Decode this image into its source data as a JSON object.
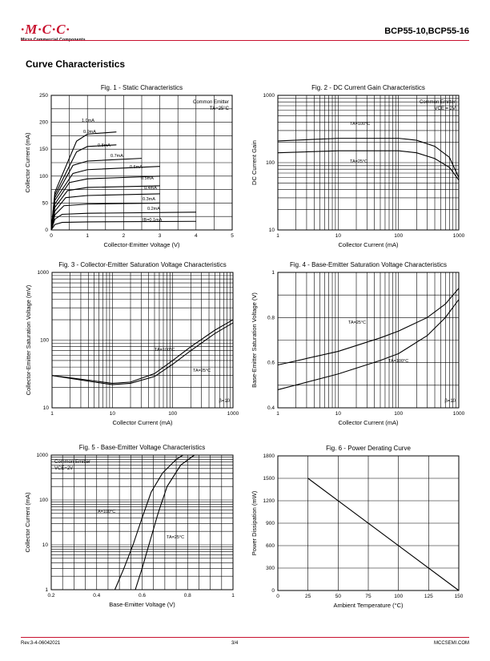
{
  "header": {
    "logo_text": "·M·C·C·",
    "logo_subtitle": "Micro Commercial Components",
    "part_numbers": "BCP55-10,BCP55-16",
    "accent_color": "#c8102e"
  },
  "section_title": "Curve Characteristics",
  "footer": {
    "revision": "Rev.3-4-06042021",
    "page": "3/4",
    "website": "MCCSEMI.COM"
  },
  "chart_data": [
    {
      "id": "fig1",
      "type": "line",
      "title": "Fig. 1 - Static Characteristics",
      "xlabel": "Collector-Emitter Voltage (V)",
      "ylabel": "Collector Current (mA)",
      "xscale": "linear",
      "yscale": "linear",
      "xlim": [
        0,
        5
      ],
      "ylim": [
        0,
        250
      ],
      "xticks": [
        0,
        1,
        2,
        3,
        4,
        5
      ],
      "yticks": [
        0,
        50,
        100,
        150,
        200,
        250
      ],
      "grid": true,
      "annotations": [
        "Common Emitter",
        "TA=25°C"
      ],
      "series": [
        {
          "name": "IB=0.1mA",
          "values": [
            [
              0,
              0
            ],
            [
              0.1,
              10
            ],
            [
              0.3,
              14
            ],
            [
              1,
              15
            ],
            [
              4,
              16
            ]
          ]
        },
        {
          "name": "0.2mA",
          "values": [
            [
              0,
              0
            ],
            [
              0.1,
              20
            ],
            [
              0.3,
              29
            ],
            [
              1,
              31
            ],
            [
              4,
              33
            ]
          ]
        },
        {
          "name": "0.3mA",
          "values": [
            [
              0,
              0
            ],
            [
              0.1,
              28
            ],
            [
              0.35,
              45
            ],
            [
              1,
              48
            ],
            [
              3,
              50
            ]
          ]
        },
        {
          "name": "0.4mA",
          "values": [
            [
              0,
              0
            ],
            [
              0.1,
              35
            ],
            [
              0.4,
              60
            ],
            [
              1,
              64
            ],
            [
              3,
              67
            ]
          ]
        },
        {
          "name": "0.5mA",
          "values": [
            [
              0,
              0
            ],
            [
              0.1,
              42
            ],
            [
              0.45,
              73
            ],
            [
              1,
              79
            ],
            [
              3,
              82
            ]
          ]
        },
        {
          "name": "0.6mA",
          "values": [
            [
              0,
              0
            ],
            [
              0.1,
              48
            ],
            [
              0.5,
              88
            ],
            [
              1,
              95
            ],
            [
              3,
              100
            ]
          ]
        },
        {
          "name": "0.7mA",
          "values": [
            [
              0,
              0
            ],
            [
              0.1,
              55
            ],
            [
              0.6,
              105
            ],
            [
              1,
              112
            ],
            [
              3,
              118
            ]
          ]
        },
        {
          "name": "0.8mA",
          "values": [
            [
              0,
              0
            ],
            [
              0.1,
              60
            ],
            [
              0.6,
              120
            ],
            [
              1,
              128
            ],
            [
              2.5,
              133
            ]
          ]
        },
        {
          "name": "0.9mA",
          "values": [
            [
              0,
              0
            ],
            [
              0.1,
              65
            ],
            [
              0.7,
              145
            ],
            [
              1,
              155
            ],
            [
              1.8,
              158
            ]
          ]
        },
        {
          "name": "1.0mA",
          "values": [
            [
              0,
              0
            ],
            [
              0.1,
              70
            ],
            [
              0.7,
              165
            ],
            [
              1,
              178
            ],
            [
              1.8,
              182
            ]
          ]
        }
      ]
    },
    {
      "id": "fig2",
      "type": "line",
      "title": "Fig. 2 - DC Current Gain Characteristics",
      "xlabel": "Collector Current (mA)",
      "ylabel": "DC Current Gain",
      "xscale": "log",
      "yscale": "log",
      "xlim": [
        1,
        1000
      ],
      "ylim": [
        10,
        1000
      ],
      "xticks": [
        1,
        10,
        100,
        1000
      ],
      "yticks": [
        10,
        100,
        1000
      ],
      "grid": true,
      "annotations": [
        "Common Emitter",
        "VCE = 2V"
      ],
      "series": [
        {
          "name": "TA=100°C",
          "values": [
            [
              1,
              210
            ],
            [
              10,
              230
            ],
            [
              100,
              230
            ],
            [
              200,
              215
            ],
            [
              400,
              175
            ],
            [
              700,
              120
            ],
            [
              1000,
              60
            ]
          ]
        },
        {
          "name": "TA=25°C",
          "values": [
            [
              1,
              140
            ],
            [
              10,
              150
            ],
            [
              100,
              150
            ],
            [
              200,
              140
            ],
            [
              400,
              115
            ],
            [
              700,
              85
            ],
            [
              1000,
              55
            ]
          ]
        }
      ]
    },
    {
      "id": "fig3",
      "type": "line",
      "title": "Fig. 3 - Collector-Emitter Saturation Voltage Characteristics",
      "xlabel": "Collector Current (mA)",
      "ylabel": "Collector-Emitter Saturation Voltage (mV)",
      "xscale": "log",
      "yscale": "log",
      "xlim": [
        1,
        1000
      ],
      "ylim": [
        10,
        1000
      ],
      "xticks": [
        1,
        10,
        100,
        1000
      ],
      "yticks": [
        10,
        100,
        1000
      ],
      "grid": true,
      "annotations": [
        "β=10"
      ],
      "series": [
        {
          "name": "TA=100°C",
          "values": [
            [
              1,
              30
            ],
            [
              5,
              25
            ],
            [
              10,
              23
            ],
            [
              20,
              24
            ],
            [
              50,
              32
            ],
            [
              100,
              50
            ],
            [
              200,
              80
            ],
            [
              500,
              140
            ],
            [
              1000,
              200
            ]
          ]
        },
        {
          "name": "TA=25°C",
          "values": [
            [
              1,
              30
            ],
            [
              5,
              24
            ],
            [
              10,
              22
            ],
            [
              20,
              23
            ],
            [
              50,
              29
            ],
            [
              100,
              44
            ],
            [
              200,
              70
            ],
            [
              500,
              125
            ],
            [
              1000,
              180
            ]
          ]
        }
      ]
    },
    {
      "id": "fig4",
      "type": "line",
      "title": "Fig. 4 - Base-Emitter Saturation Voltage Characteristics",
      "xlabel": "Collector Current (mA)",
      "ylabel": "Base-Emitter Saturation Voltage (V)",
      "xscale": "log",
      "yscale": "linear",
      "xlim": [
        1,
        1000
      ],
      "ylim": [
        0.4,
        1.0
      ],
      "xticks": [
        1,
        10,
        100,
        1000
      ],
      "yticks": [
        0.4,
        0.6,
        0.8,
        1.0
      ],
      "grid": true,
      "annotations": [
        "β=10"
      ],
      "series": [
        {
          "name": "TA=25°C",
          "values": [
            [
              1,
              0.59
            ],
            [
              10,
              0.65
            ],
            [
              50,
              0.71
            ],
            [
              100,
              0.74
            ],
            [
              300,
              0.8
            ],
            [
              600,
              0.86
            ],
            [
              1000,
              0.93
            ]
          ]
        },
        {
          "name": "TA=100°C",
          "values": [
            [
              1,
              0.48
            ],
            [
              10,
              0.55
            ],
            [
              50,
              0.61
            ],
            [
              100,
              0.64
            ],
            [
              300,
              0.72
            ],
            [
              600,
              0.8
            ],
            [
              1000,
              0.88
            ]
          ]
        }
      ]
    },
    {
      "id": "fig5",
      "type": "line",
      "title": "Fig. 5 - Base-Emitter Voltage Characteristics",
      "xlabel": "Base-Emitter Voltage (V)",
      "ylabel": "Collector Current (mA)",
      "xscale": "linear",
      "yscale": "log",
      "xlim": [
        0.2,
        1.0
      ],
      "ylim": [
        1,
        1000
      ],
      "xticks": [
        0.2,
        0.4,
        0.6,
        0.8,
        1.0
      ],
      "yticks": [
        1,
        10,
        100,
        1000
      ],
      "grid": true,
      "annotations": [
        "Common Emitter",
        "VCE=2V"
      ],
      "series": [
        {
          "name": "TA=100°C",
          "values": [
            [
              0.48,
              1
            ],
            [
              0.52,
              3
            ],
            [
              0.56,
              10
            ],
            [
              0.6,
              40
            ],
            [
              0.64,
              150
            ],
            [
              0.69,
              400
            ],
            [
              0.75,
              800
            ],
            [
              0.78,
              1000
            ]
          ]
        },
        {
          "name": "TA=25°C",
          "values": [
            [
              0.57,
              1
            ],
            [
              0.6,
              3
            ],
            [
              0.63,
              10
            ],
            [
              0.67,
              50
            ],
            [
              0.71,
              200
            ],
            [
              0.77,
              600
            ],
            [
              0.83,
              1000
            ]
          ]
        }
      ]
    },
    {
      "id": "fig6",
      "type": "line",
      "title": "Fig. 6 - Power Derating Curve",
      "xlabel": "Ambient Temperature (°C)",
      "ylabel": "Power Dissipation (mW)",
      "xscale": "linear",
      "yscale": "linear",
      "xlim": [
        0,
        150
      ],
      "ylim": [
        0,
        1800
      ],
      "xticks": [
        0,
        25,
        50,
        75,
        100,
        125,
        150
      ],
      "yticks": [
        0,
        300,
        600,
        900,
        1200,
        1500,
        1800
      ],
      "grid": true,
      "annotations": [],
      "series": [
        {
          "name": "",
          "values": [
            [
              25,
              1500
            ],
            [
              150,
              0
            ]
          ]
        }
      ]
    }
  ]
}
